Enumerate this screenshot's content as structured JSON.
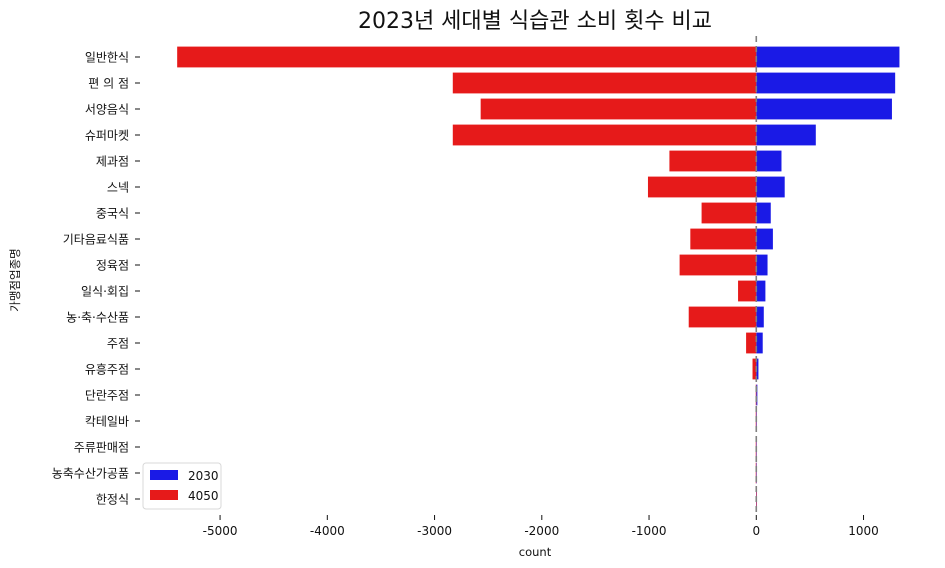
{
  "chart_data": {
    "type": "bar",
    "orientation": "horizontal",
    "title": "2023년 세대별 식습관 소비 횟수 비교",
    "xlabel": "count",
    "ylabel": "가맹점업종명",
    "xlim": [
      -5700,
      1480
    ],
    "xticks": [
      -5000,
      -4000,
      -3000,
      -2000,
      -1000,
      0,
      1000
    ],
    "xtick_labels": [
      "-5000",
      "-4000",
      "-3000",
      "-2000",
      "-1000",
      "0",
      "1000"
    ],
    "categories": [
      "일반한식",
      "편 의 점",
      "서양음식",
      "슈퍼마켓",
      "제과점",
      "스넥",
      "중국식",
      "기타음료식품",
      "정육점",
      "일식·회집",
      "농·축·수산품",
      "주점",
      "유흥주점",
      "단란주점",
      "칵테일바",
      "주류판매점",
      "농축수산가공품",
      "한정식"
    ],
    "series": [
      {
        "name": "2030",
        "color": "#1a1ae6",
        "values": [
          1335,
          1295,
          1265,
          555,
          235,
          265,
          135,
          155,
          105,
          85,
          70,
          60,
          20,
          10,
          5,
          3,
          3,
          2
        ]
      },
      {
        "name": "4050",
        "color": "#e61a1a",
        "values": [
          -5400,
          -2830,
          -2570,
          -2830,
          -810,
          -1010,
          -510,
          -615,
          -715,
          -170,
          -630,
          -95,
          -35,
          -5,
          -5,
          -5,
          -5,
          -2
        ]
      }
    ],
    "zero_line": {
      "style": "dashed",
      "color": "#808080"
    },
    "grid": false,
    "legend": {
      "position": "bottom-left",
      "entries": [
        "2030",
        "4050"
      ]
    }
  }
}
